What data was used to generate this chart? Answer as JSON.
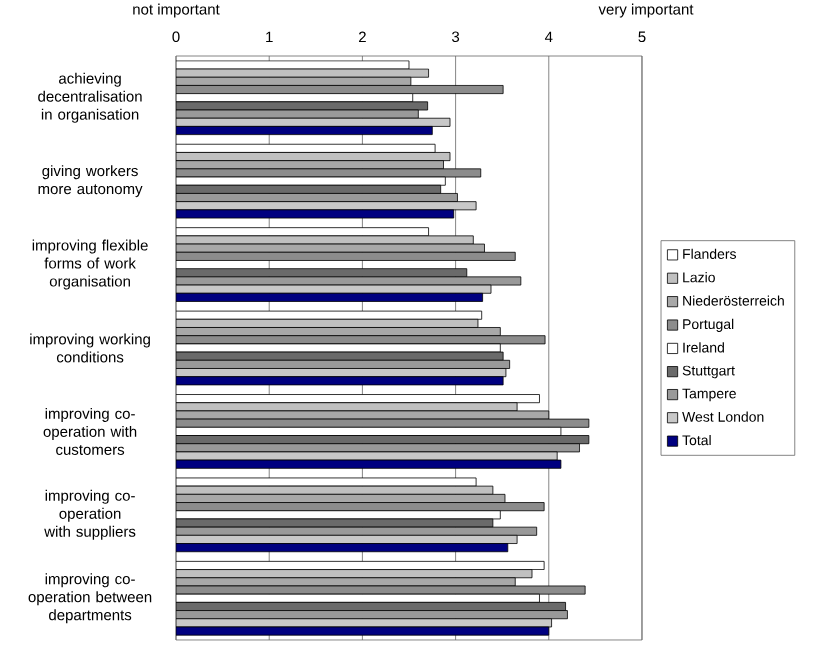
{
  "chart_data": {
    "type": "bar",
    "orientation": "horizontal",
    "categories": [
      "achieving decentralisation in organisation",
      "giving workers more autonomy",
      "improving flexible forms of work organisation",
      "improving working conditions",
      "improving co-operation with customers",
      "improving co-operation with suppliers",
      "improving co-operation between departments"
    ],
    "series": [
      {
        "name": "Flanders",
        "color": "#ffffff",
        "values": [
          2.5,
          2.78,
          2.71,
          3.28,
          3.9,
          3.22,
          3.95
        ]
      },
      {
        "name": "Lazio",
        "color": "#c0c0c0",
        "values": [
          2.71,
          2.94,
          3.19,
          3.24,
          3.66,
          3.4,
          3.82
        ]
      },
      {
        "name": "Niederösterreich",
        "color": "#a8a8a8",
        "values": [
          2.52,
          2.87,
          3.31,
          3.48,
          4.0,
          3.53,
          3.64
        ]
      },
      {
        "name": "Portugal",
        "color": "#8c8c8c",
        "values": [
          3.51,
          3.27,
          3.64,
          3.96,
          4.43,
          3.95,
          4.39
        ]
      },
      {
        "name": "Ireland",
        "color": "#ffffff",
        "values": [
          2.54,
          2.89,
          null,
          3.48,
          4.13,
          3.48,
          3.9
        ]
      },
      {
        "name": "Stuttgart",
        "color": "#6a6a6a",
        "values": [
          2.7,
          2.84,
          3.12,
          3.51,
          4.43,
          3.4,
          4.18
        ]
      },
      {
        "name": "Tampere",
        "color": "#999999",
        "values": [
          2.6,
          3.02,
          3.7,
          3.58,
          4.33,
          3.87,
          4.2
        ]
      },
      {
        "name": "West London",
        "color": "#c8c8c8",
        "values": [
          2.94,
          3.22,
          3.38,
          3.54,
          4.09,
          3.66,
          4.03
        ]
      },
      {
        "name": "Total",
        "color": "#000080",
        "values": [
          2.75,
          2.98,
          3.29,
          3.51,
          4.13,
          3.56,
          4.0
        ]
      }
    ],
    "xlim": [
      0,
      5
    ],
    "xticks": [
      0,
      1,
      2,
      3,
      4,
      5
    ],
    "grid": "x",
    "legend": "right",
    "annotations": [
      "not important",
      "very important"
    ]
  }
}
